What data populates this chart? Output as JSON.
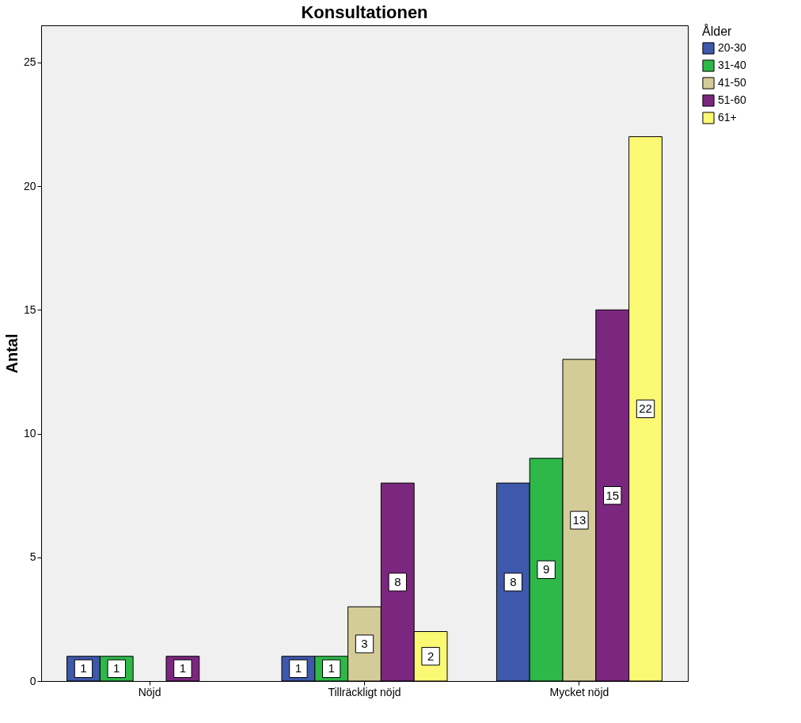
{
  "chart_data": {
    "type": "bar",
    "title": "Konsultationen",
    "ylabel": "Antal",
    "legend_title": "Ålder",
    "categories": [
      "Nöjd",
      "Tillräckligt nöjd",
      "Mycket nöjd"
    ],
    "series": [
      {
        "name": "20-30",
        "color": "#3e58ac",
        "values": [
          1,
          1,
          8
        ]
      },
      {
        "name": "31-40",
        "color": "#2eb848",
        "values": [
          1,
          1,
          9
        ]
      },
      {
        "name": "41-50",
        "color": "#d4cc98",
        "values": [
          null,
          3,
          13
        ]
      },
      {
        "name": "51-60",
        "color": "#7b277f",
        "values": [
          1,
          8,
          15
        ]
      },
      {
        "name": "61+",
        "color": "#fbf873",
        "values": [
          null,
          2,
          22
        ]
      }
    ],
    "ylim": [
      0,
      26.5
    ],
    "yticks": [
      0,
      5,
      10,
      15,
      20,
      25
    ],
    "grid": false,
    "legend": "top right",
    "data_labels": true
  }
}
